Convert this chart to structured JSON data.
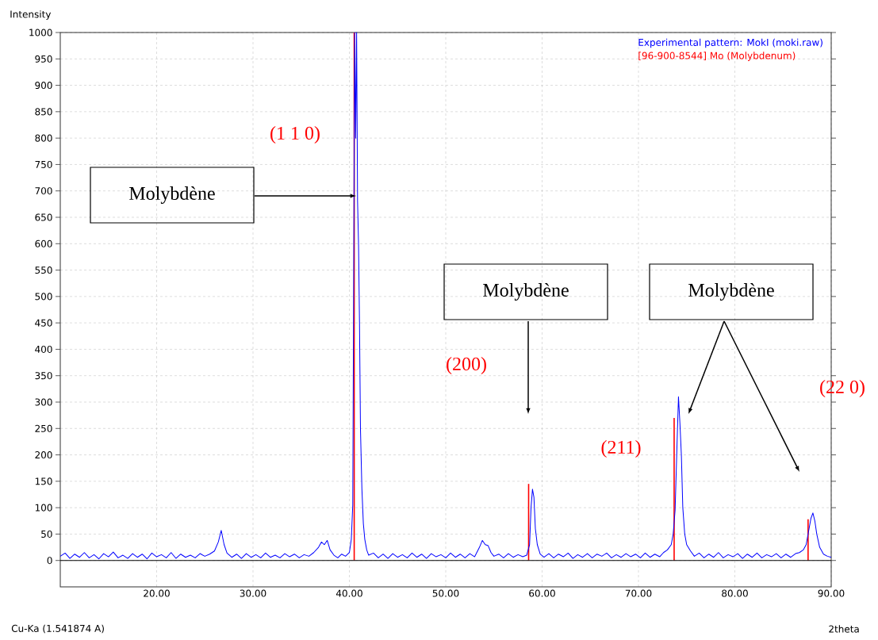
{
  "chart_data": {
    "type": "line",
    "xlabel": "2theta",
    "ylabel": "Intensity",
    "xlim": [
      10,
      90
    ],
    "ylim": [
      -50,
      1000
    ],
    "xticks": [
      {
        "value": 20,
        "label": "20.00"
      },
      {
        "value": 30,
        "label": "30.00"
      },
      {
        "value": 40,
        "label": "40.00"
      },
      {
        "value": 50,
        "label": "50.00"
      },
      {
        "value": 60,
        "label": "60.00"
      },
      {
        "value": 70,
        "label": "70.00"
      },
      {
        "value": 80,
        "label": "80.00"
      },
      {
        "value": 90,
        "label": "90.00"
      }
    ],
    "yticks": [
      0,
      50,
      100,
      150,
      200,
      250,
      300,
      350,
      400,
      450,
      500,
      550,
      600,
      650,
      700,
      750,
      800,
      850,
      900,
      950,
      1000
    ],
    "grid": true,
    "legend": "top right",
    "series": [
      {
        "name": "Experimental pattern: MokI (moki.raw)",
        "color": "#0000ff",
        "x": [
          10,
          10.5,
          11,
          11.5,
          12,
          12.5,
          13,
          13.5,
          14,
          14.5,
          15,
          15.5,
          16,
          16.5,
          17,
          17.5,
          18,
          18.5,
          19,
          19.5,
          20,
          20.5,
          21,
          21.5,
          22,
          22.5,
          23,
          23.5,
          24,
          24.5,
          25,
          25.5,
          26,
          26.4,
          26.7,
          27,
          27.3,
          27.8,
          28.3,
          28.8,
          29.3,
          29.8,
          30.3,
          30.8,
          31.3,
          31.8,
          32.3,
          32.8,
          33.3,
          33.8,
          34.3,
          34.8,
          35.3,
          35.8,
          36.3,
          36.8,
          37.1,
          37.4,
          37.7,
          38,
          38.4,
          38.8,
          39.2,
          39.6,
          40,
          40.2,
          40.35,
          40.45,
          40.55,
          40.65,
          40.75,
          40.85,
          40.95,
          41.05,
          41.15,
          41.3,
          41.45,
          41.6,
          41.8,
          42,
          42.5,
          43,
          43.5,
          44,
          44.5,
          45,
          45.5,
          46,
          46.5,
          47,
          47.5,
          48,
          48.5,
          49,
          49.5,
          50,
          50.5,
          51,
          51.5,
          52,
          52.5,
          53,
          53.5,
          53.8,
          54.1,
          54.4,
          54.7,
          55,
          55.5,
          56,
          56.5,
          57,
          57.5,
          58,
          58.4,
          58.7,
          58.85,
          59,
          59.15,
          59.3,
          59.5,
          59.8,
          60.2,
          60.7,
          61.2,
          61.7,
          62.2,
          62.7,
          63.2,
          63.7,
          64.2,
          64.7,
          65.2,
          65.7,
          66.2,
          66.7,
          67.2,
          67.7,
          68.2,
          68.7,
          69.2,
          69.7,
          70.2,
          70.7,
          71.2,
          71.7,
          72.2,
          72.6,
          73,
          73.4,
          73.6,
          73.8,
          74,
          74.15,
          74.3,
          74.45,
          74.6,
          74.8,
          75,
          75.4,
          75.8,
          76.3,
          76.8,
          77.3,
          77.8,
          78.3,
          78.8,
          79.3,
          79.8,
          80.3,
          80.8,
          81.3,
          81.8,
          82.3,
          82.8,
          83.3,
          83.8,
          84.3,
          84.8,
          85.3,
          85.8,
          86.3,
          86.7,
          87.1,
          87.4,
          87.7,
          87.9,
          88.1,
          88.3,
          88.5,
          88.8,
          89.2,
          89.6,
          90
        ],
        "values": [
          8,
          14,
          4,
          12,
          6,
          15,
          5,
          11,
          3,
          13,
          7,
          16,
          5,
          10,
          4,
          13,
          6,
          12,
          3,
          14,
          7,
          11,
          5,
          15,
          4,
          12,
          6,
          10,
          5,
          13,
          8,
          12,
          18,
          35,
          57,
          30,
          14,
          6,
          12,
          4,
          13,
          6,
          11,
          5,
          14,
          6,
          10,
          5,
          13,
          7,
          12,
          5,
          11,
          8,
          15,
          25,
          35,
          30,
          38,
          20,
          10,
          5,
          12,
          8,
          15,
          40,
          105,
          545,
          1000,
          800,
          1000,
          680,
          600,
          450,
          250,
          135,
          70,
          40,
          20,
          10,
          14,
          5,
          12,
          4,
          13,
          6,
          11,
          5,
          14,
          6,
          12,
          4,
          13,
          7,
          11,
          5,
          14,
          6,
          12,
          5,
          13,
          7,
          25,
          38,
          30,
          28,
          15,
          8,
          12,
          5,
          13,
          6,
          11,
          7,
          10,
          30,
          100,
          135,
          120,
          60,
          30,
          12,
          6,
          13,
          5,
          12,
          7,
          14,
          4,
          11,
          6,
          13,
          5,
          12,
          8,
          14,
          5,
          11,
          6,
          13,
          7,
          12,
          5,
          14,
          6,
          12,
          7,
          15,
          20,
          30,
          50,
          95,
          220,
          310,
          260,
          200,
          100,
          50,
          30,
          18,
          8,
          14,
          5,
          12,
          6,
          15,
          5,
          11,
          7,
          13,
          4,
          12,
          6,
          14,
          5,
          11,
          7,
          13,
          5,
          12,
          6,
          13,
          15,
          20,
          30,
          60,
          80,
          90,
          75,
          50,
          25,
          12,
          8,
          6
        ]
      },
      {
        "name": "[96-900-8544] Mo  (Molybdenum)",
        "color": "#ff0000",
        "type": "bar",
        "x": [
          40.5,
          58.6,
          73.7,
          87.6
        ],
        "values": [
          1000,
          145,
          270,
          78
        ]
      }
    ],
    "ref_lines": [
      {
        "axis": "y",
        "value": 0,
        "color": "#000000"
      }
    ],
    "annotations": [
      "Molybdène",
      "Molybdène",
      "Molybdène",
      "(1 1 0)",
      "(200)",
      "(211)",
      "(22 0)",
      "Cu-Ka (1.541874 A)"
    ]
  }
}
